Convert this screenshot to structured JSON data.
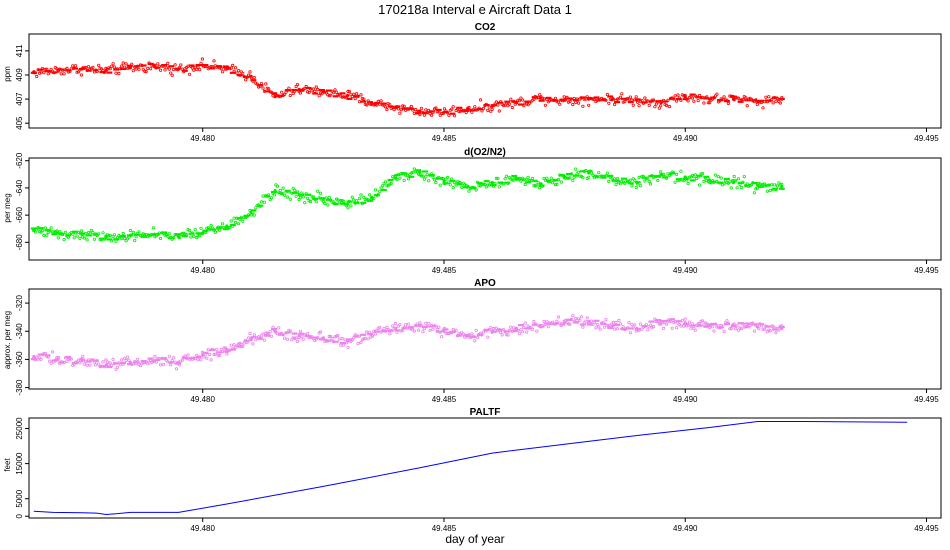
{
  "figure": {
    "title": "170218a   Interval e Aircraft Data 1",
    "xlabel": "day of year"
  },
  "chart_data": [
    {
      "type": "scatter",
      "title": "CO2",
      "ylabel": "ppm",
      "xlim": [
        49.4764,
        49.4953
      ],
      "ylim": [
        404.6,
        412.4
      ],
      "xticks": [
        "49.480",
        "49.485",
        "49.490",
        "49.495"
      ],
      "yticks": [
        "405",
        "407",
        "409",
        "411"
      ],
      "color": "#ff0000",
      "grid": false,
      "x": [
        49.4765,
        49.477,
        49.4775,
        49.478,
        49.4785,
        49.479,
        49.4795,
        49.48,
        49.4805,
        49.481,
        49.4815,
        49.482,
        49.4825,
        49.483,
        49.4835,
        49.484,
        49.4845,
        49.485,
        49.4855,
        49.486,
        49.4865,
        49.487,
        49.4875,
        49.488,
        49.4885,
        49.489,
        49.4895,
        49.49,
        49.4905,
        49.491,
        49.4915,
        49.492
      ],
      "y": [
        409.2,
        409.4,
        409.5,
        409.4,
        409.6,
        409.7,
        409.5,
        409.8,
        409.5,
        408.9,
        407.2,
        407.8,
        407.6,
        407.3,
        406.7,
        406.3,
        406.0,
        405.9,
        406.2,
        406.4,
        406.7,
        407.1,
        406.9,
        407.0,
        407.0,
        406.9,
        406.7,
        407.2,
        407.0,
        407.0,
        406.8,
        407.0
      ]
    },
    {
      "type": "scatter",
      "title": "d(O2/N2)",
      "ylabel": "per meg",
      "xlim": [
        49.4764,
        49.4953
      ],
      "ylim": [
        -693,
        -618
      ],
      "xticks": [
        "49.480",
        "49.485",
        "49.490",
        "49.495"
      ],
      "yticks": [
        "-620",
        "-640",
        "-660",
        "-680"
      ],
      "color": "#00ee00",
      "grid": false,
      "x": [
        49.4765,
        49.477,
        49.4775,
        49.478,
        49.4785,
        49.479,
        49.4795,
        49.48,
        49.4805,
        49.481,
        49.4815,
        49.482,
        49.4825,
        49.483,
        49.4835,
        49.484,
        49.4845,
        49.485,
        49.4855,
        49.486,
        49.4865,
        49.487,
        49.4875,
        49.488,
        49.4885,
        49.489,
        49.4895,
        49.49,
        49.4905,
        49.491,
        49.4915,
        49.492
      ],
      "y": [
        -671,
        -673,
        -674,
        -676,
        -675,
        -674,
        -676,
        -673,
        -668,
        -658,
        -642,
        -645,
        -648,
        -652,
        -647,
        -633,
        -628,
        -635,
        -639,
        -636,
        -633,
        -637,
        -632,
        -629,
        -634,
        -636,
        -630,
        -632,
        -634,
        -636,
        -638,
        -639
      ]
    },
    {
      "type": "scatter",
      "title": "APO",
      "ylabel": "approx. per meg",
      "xlim": [
        49.4764,
        49.4953
      ],
      "ylim": [
        -381,
        -310
      ],
      "xticks": [
        "49.480",
        "49.485",
        "49.490",
        "49.495"
      ],
      "yticks": [
        "-320",
        "-340",
        "-360",
        "-380"
      ],
      "color": "#ee82ee",
      "grid": false,
      "x": [
        49.4765,
        49.477,
        49.4775,
        49.478,
        49.4785,
        49.479,
        49.4795,
        49.48,
        49.4805,
        49.481,
        49.4815,
        49.482,
        49.4825,
        49.483,
        49.4835,
        49.484,
        49.4845,
        49.485,
        49.4855,
        49.486,
        49.4865,
        49.487,
        49.4875,
        49.488,
        49.4885,
        49.489,
        49.4895,
        49.49,
        49.4905,
        49.491,
        49.4915,
        49.492
      ],
      "y": [
        -358,
        -360,
        -361,
        -364,
        -362,
        -361,
        -362,
        -357,
        -353,
        -346,
        -340,
        -343,
        -345,
        -347,
        -342,
        -338,
        -336,
        -340,
        -343,
        -340,
        -338,
        -336,
        -334,
        -333,
        -336,
        -338,
        -333,
        -334,
        -336,
        -336,
        -337,
        -338
      ]
    },
    {
      "type": "line",
      "title": "PALTF",
      "ylabel": "feet",
      "xlim": [
        49.4764,
        49.4953
      ],
      "ylim": [
        -500,
        28000
      ],
      "xticks": [
        "49.480",
        "49.485",
        "49.490",
        "49.495"
      ],
      "yticks": [
        "0",
        "5000",
        "15000",
        "25000"
      ],
      "color": "#0000ff",
      "grid": false,
      "x": [
        49.4765,
        49.4769,
        49.4775,
        49.4778,
        49.478,
        49.4782,
        49.4785,
        49.479,
        49.4795,
        49.4805,
        49.4825,
        49.4845,
        49.486,
        49.4875,
        49.489,
        49.4905,
        49.4915,
        49.4925,
        49.4935,
        49.4946
      ],
      "y": [
        1400,
        1100,
        1000,
        900,
        500,
        700,
        1100,
        1100,
        1100,
        3500,
        8500,
        13800,
        18000,
        20500,
        23000,
        25300,
        27000,
        27000,
        26900,
        26800
      ]
    }
  ]
}
